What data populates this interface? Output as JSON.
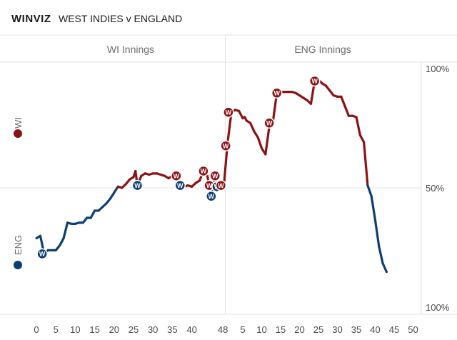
{
  "header": {
    "brand": "WINVIZ",
    "title": "WEST INDIES v ENGLAND"
  },
  "innings": [
    {
      "label": "WI Innings"
    },
    {
      "label": "ENG Innings"
    }
  ],
  "teams": [
    {
      "label": "WI",
      "color": "#8b1214"
    },
    {
      "label": "ENG",
      "color": "#0c3e73"
    }
  ],
  "wicket_marker": "W",
  "chart_data": {
    "type": "line",
    "title": "",
    "xlabel": "",
    "ylabel": "",
    "y_axis_labels": [
      "100%",
      "50%",
      "100%"
    ],
    "x_ticks": [
      {
        "innings": 1,
        "over": 0,
        "label": "0"
      },
      {
        "innings": 1,
        "over": 5,
        "label": "5"
      },
      {
        "innings": 1,
        "over": 10,
        "label": "10"
      },
      {
        "innings": 1,
        "over": 15,
        "label": "15"
      },
      {
        "innings": 1,
        "over": 20,
        "label": "20"
      },
      {
        "innings": 1,
        "over": 25,
        "label": "25"
      },
      {
        "innings": 1,
        "over": 30,
        "label": "30"
      },
      {
        "innings": 1,
        "over": 35,
        "label": "35"
      },
      {
        "innings": 1,
        "over": 40,
        "label": "40"
      },
      {
        "innings": 1,
        "over": 48,
        "label": "48"
      },
      {
        "innings": 2,
        "over": 5,
        "label": "5"
      },
      {
        "innings": 2,
        "over": 10,
        "label": "10"
      },
      {
        "innings": 2,
        "over": 15,
        "label": "15"
      },
      {
        "innings": 2,
        "over": 20,
        "label": "20"
      },
      {
        "innings": 2,
        "over": 25,
        "label": "25"
      },
      {
        "innings": 2,
        "over": 30,
        "label": "30"
      },
      {
        "innings": 2,
        "over": 35,
        "label": "35"
      },
      {
        "innings": 2,
        "over": 40,
        "label": "40"
      },
      {
        "innings": 2,
        "over": 45,
        "label": "45"
      },
      {
        "innings": 2,
        "over": 50,
        "label": "50"
      }
    ],
    "innings1_overs": 48,
    "innings2_overs": 50,
    "y_meaning": "win probability, +100 = West Indies certain, -100 = England certain",
    "ylim": [
      -100,
      100
    ],
    "series": [
      {
        "innings": 1,
        "points": [
          [
            0,
            -42
          ],
          [
            1,
            -40
          ],
          [
            2,
            -55
          ],
          [
            3,
            -52
          ],
          [
            4,
            -52
          ],
          [
            5,
            -52
          ],
          [
            6,
            -48
          ],
          [
            7,
            -42
          ],
          [
            8,
            -29
          ],
          [
            9,
            -30
          ],
          [
            10,
            -30
          ],
          [
            11,
            -29
          ],
          [
            12,
            -29
          ],
          [
            13,
            -25
          ],
          [
            14,
            -25
          ],
          [
            15,
            -19
          ],
          [
            16,
            -19
          ],
          [
            17,
            -16
          ],
          [
            18,
            -13
          ],
          [
            19,
            -9
          ],
          [
            20,
            -4
          ],
          [
            21,
            1
          ],
          [
            22,
            0
          ],
          [
            23,
            3
          ],
          [
            24,
            7
          ],
          [
            25,
            9
          ],
          [
            25.5,
            14
          ],
          [
            26,
            2
          ],
          [
            27,
            10
          ],
          [
            28,
            12
          ],
          [
            29,
            11
          ],
          [
            30,
            12
          ],
          [
            31,
            12
          ],
          [
            32,
            11
          ],
          [
            33,
            10
          ],
          [
            34,
            8
          ],
          [
            35,
            10
          ],
          [
            36,
            10
          ],
          [
            36.5,
            12
          ],
          [
            37,
            2
          ],
          [
            38,
            1
          ],
          [
            39,
            2
          ],
          [
            40,
            1
          ],
          [
            41,
            4
          ],
          [
            42,
            6
          ],
          [
            43,
            14
          ],
          [
            44,
            10
          ],
          [
            44.5,
            2
          ],
          [
            45,
            -7
          ],
          [
            45.5,
            2
          ],
          [
            46,
            10
          ],
          [
            46.5,
            1
          ],
          [
            47,
            4
          ],
          [
            47.5,
            1
          ],
          [
            48,
            2
          ]
        ]
      },
      {
        "innings": 2,
        "points": [
          [
            0,
            2
          ],
          [
            1,
            38
          ],
          [
            2,
            63
          ],
          [
            3,
            65
          ],
          [
            4,
            64
          ],
          [
            5,
            58
          ],
          [
            5.5,
            59
          ],
          [
            6,
            56
          ],
          [
            7,
            54
          ],
          [
            8,
            47
          ],
          [
            9,
            42
          ],
          [
            10,
            33
          ],
          [
            11,
            28
          ],
          [
            12,
            51
          ],
          [
            13,
            56
          ],
          [
            14,
            79
          ],
          [
            15,
            80
          ],
          [
            16,
            80
          ],
          [
            17,
            80
          ],
          [
            18,
            80
          ],
          [
            19,
            79
          ],
          [
            20,
            77
          ],
          [
            21,
            75
          ],
          [
            22,
            73
          ],
          [
            23,
            70
          ],
          [
            24,
            89
          ],
          [
            25,
            90
          ],
          [
            26,
            87
          ],
          [
            27,
            85
          ],
          [
            28,
            81
          ],
          [
            29,
            77
          ],
          [
            30,
            76
          ],
          [
            31,
            76
          ],
          [
            32,
            68
          ],
          [
            33,
            60
          ],
          [
            34,
            60
          ],
          [
            35,
            59
          ],
          [
            36,
            44
          ],
          [
            37,
            38
          ],
          [
            38,
            2
          ],
          [
            39,
            -7
          ],
          [
            40,
            -27
          ],
          [
            41,
            -49
          ],
          [
            42,
            -63
          ],
          [
            43,
            -70
          ]
        ]
      }
    ],
    "wickets": [
      {
        "innings": 1,
        "over": 1.5,
        "value": -55,
        "team": "ENG"
      },
      {
        "innings": 1,
        "over": 26,
        "value": 2,
        "team": "ENG"
      },
      {
        "innings": 1,
        "over": 36,
        "value": 10,
        "team": "WI"
      },
      {
        "innings": 1,
        "over": 37,
        "value": 2,
        "team": "ENG"
      },
      {
        "innings": 1,
        "over": 43,
        "value": 14,
        "team": "WI"
      },
      {
        "innings": 1,
        "over": 44.5,
        "value": 2,
        "team": "WI"
      },
      {
        "innings": 1,
        "over": 45,
        "value": -7,
        "team": "ENG"
      },
      {
        "innings": 1,
        "over": 46,
        "value": 10,
        "team": "WI"
      },
      {
        "innings": 1,
        "over": 46.5,
        "value": 1,
        "team": "ENG"
      },
      {
        "innings": 1,
        "over": 47.5,
        "value": 2,
        "team": "WI"
      },
      {
        "innings": 2,
        "over": 0.5,
        "value": 35,
        "team": "WI"
      },
      {
        "innings": 2,
        "over": 1.2,
        "value": 63,
        "team": "WI"
      },
      {
        "innings": 2,
        "over": 12,
        "value": 54,
        "team": "WI"
      },
      {
        "innings": 2,
        "over": 14,
        "value": 79,
        "team": "WI"
      },
      {
        "innings": 2,
        "over": 24,
        "value": 89,
        "team": "WI"
      }
    ]
  }
}
